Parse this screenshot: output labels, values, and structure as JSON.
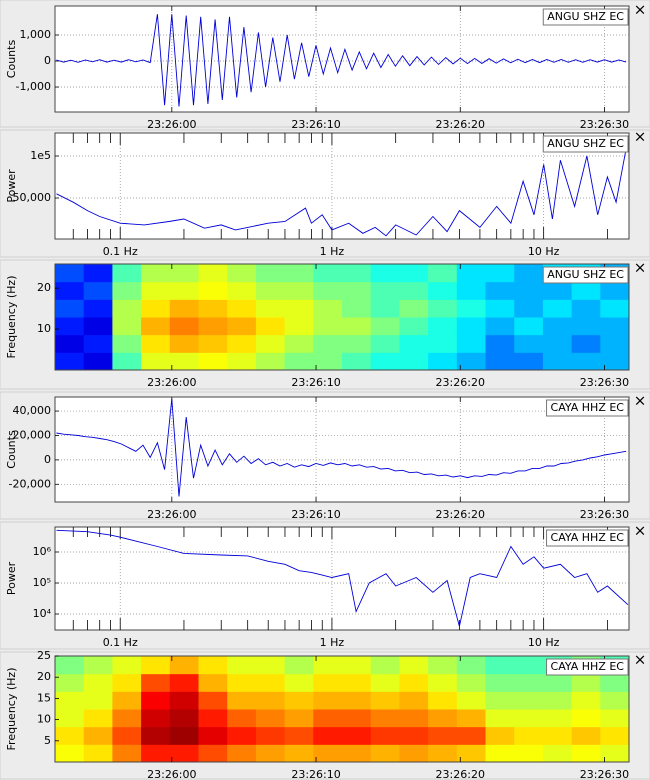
{
  "close_button": "×",
  "chart_data": [
    {
      "type": "line",
      "ylabel": "Counts",
      "x": [
        -8,
        -7.5,
        -7,
        -6.5,
        -6,
        -5.5,
        -5,
        -4.5,
        -4,
        -3.5,
        -3,
        -2.5,
        -2,
        -1.5,
        -1,
        -0.5,
        0,
        0.5,
        1,
        1.5,
        2,
        2.5,
        3,
        3.5,
        4,
        4.5,
        5,
        5.5,
        6,
        6.5,
        7,
        7.5,
        8,
        8.5,
        9,
        9.5,
        10,
        10.5,
        11,
        11.5,
        12,
        12.5,
        13,
        13.5,
        14,
        14.5,
        15,
        15.5,
        16,
        16.5,
        17,
        17.5,
        18,
        18.5,
        19,
        19.5,
        20,
        20.5,
        21,
        21.5,
        22,
        22.5,
        23,
        23.5,
        24,
        24.5,
        25,
        25.5,
        26,
        26.5,
        27,
        27.5,
        28,
        28.5,
        29,
        29.5,
        30,
        30.5,
        31,
        31.5
      ],
      "series": [
        {
          "name": "ANGU SHZ EC",
          "color": "#0000d8",
          "values": [
            40,
            -40,
            30,
            -50,
            40,
            -30,
            50,
            -40,
            30,
            -40,
            50,
            -30,
            40,
            -60,
            1800,
            -1700,
            1800,
            -1750,
            1750,
            -1700,
            1700,
            -1650,
            1600,
            -1500,
            1700,
            -1400,
            1300,
            -1200,
            1100,
            -1000,
            900,
            -800,
            1000,
            -700,
            700,
            -600,
            600,
            -500,
            500,
            -450,
            450,
            -350,
            350,
            -300,
            300,
            -250,
            250,
            -200,
            200,
            -180,
            170,
            -150,
            150,
            -130,
            130,
            -110,
            110,
            -100,
            100,
            -90,
            90,
            -80,
            80,
            -70,
            70,
            -60,
            60,
            -60,
            60,
            -50,
            60,
            -50,
            50,
            -50,
            50,
            -40,
            50,
            -40,
            40,
            -40
          ]
        }
      ],
      "xlim": [
        -8.1,
        31.7
      ],
      "ylim": [
        -1960,
        2115
      ],
      "xticks": [
        {
          "value": 0,
          "label": "23:26:00"
        },
        {
          "value": 10,
          "label": "23:26:10"
        },
        {
          "value": 20,
          "label": "23:26:20"
        },
        {
          "value": 30,
          "label": "23:26:30"
        }
      ],
      "yticks": [
        {
          "value": 1000,
          "label": "1,000"
        },
        0,
        {
          "value": -1000,
          "label": "-1,000"
        }
      ],
      "grid": true
    },
    {
      "type": "line",
      "ylabel": "Power",
      "xscale": "log",
      "x": [
        0.05,
        0.06,
        0.07,
        0.08,
        0.1,
        0.13,
        0.17,
        0.2,
        0.25,
        0.3,
        0.35,
        0.4,
        0.5,
        0.6,
        0.75,
        0.8,
        0.9,
        1,
        1.2,
        1.4,
        1.6,
        1.8,
        2,
        2.5,
        3,
        3.5,
        4,
        5,
        6,
        7,
        8,
        9,
        10,
        11,
        12,
        14,
        16,
        18,
        20,
        22,
        25
      ],
      "series": [
        {
          "name": "ANGU SHZ EC",
          "color": "#0000d8",
          "values": [
            55000,
            45000,
            35000,
            28000,
            20000,
            18000,
            22000,
            25000,
            14000,
            18000,
            12000,
            15000,
            20000,
            22000,
            38000,
            20000,
            30000,
            12000,
            20000,
            8000,
            15000,
            5000,
            18000,
            6000,
            28000,
            10000,
            35000,
            15000,
            40000,
            20000,
            70000,
            30000,
            90000,
            25000,
            95000,
            40000,
            100000,
            30000,
            75000,
            45000,
            120000
          ]
        }
      ],
      "xlim": [
        0.0492,
        25.3
      ],
      "ylim": [
        1190,
        127400
      ],
      "xticks": [
        {
          "value": 0.1,
          "label": "0.1 Hz"
        },
        {
          "value": 1,
          "label": "1 Hz"
        },
        {
          "value": 10,
          "label": "10 Hz"
        }
      ],
      "xminor": [
        0.06,
        0.07,
        0.08,
        0.09,
        0.2,
        0.3,
        0.4,
        0.5,
        0.6,
        0.7,
        0.8,
        0.9,
        2,
        3,
        4,
        5,
        6,
        7,
        8,
        9,
        20
      ],
      "yticks": [
        {
          "value": 100000,
          "label": "1e5"
        },
        {
          "value": 50000,
          "label": "50,000"
        }
      ],
      "grid": true
    },
    {
      "type": "heatmap",
      "ylabel": "Frequency (Hz)",
      "label": "ANGU SHZ EC",
      "xlim": [
        -8.1,
        31.7
      ],
      "ylim": [
        0,
        25.9
      ],
      "xticks": [
        {
          "value": 0,
          "label": "23:26:00"
        },
        {
          "value": 10,
          "label": "23:26:10"
        },
        {
          "value": 20,
          "label": "23:26:20"
        },
        {
          "value": 30,
          "label": "23:26:30"
        }
      ],
      "yticks": [
        20,
        10
      ],
      "z": [
        [
          0.15,
          0.1,
          0.45,
          0.6,
          0.6,
          0.62,
          0.6,
          0.55,
          0.5,
          0.5,
          0.45,
          0.4,
          0.4,
          0.35,
          0.3,
          0.25,
          0.25,
          0.3,
          0.3,
          0.3
        ],
        [
          0.1,
          0.15,
          0.5,
          0.65,
          0.7,
          0.68,
          0.65,
          0.6,
          0.55,
          0.5,
          0.5,
          0.45,
          0.4,
          0.4,
          0.35,
          0.25,
          0.3,
          0.3,
          0.25,
          0.3
        ],
        [
          0.15,
          0.1,
          0.55,
          0.7,
          0.75,
          0.72,
          0.7,
          0.65,
          0.6,
          0.55,
          0.55,
          0.5,
          0.45,
          0.4,
          0.35,
          0.3,
          0.35,
          0.3,
          0.3,
          0.3
        ],
        [
          0.2,
          0.15,
          0.55,
          0.65,
          0.7,
          0.68,
          0.65,
          0.6,
          0.6,
          0.55,
          0.5,
          0.45,
          0.5,
          0.45,
          0.4,
          0.35,
          0.3,
          0.35,
          0.3,
          0.35
        ],
        [
          0.15,
          0.2,
          0.5,
          0.6,
          0.6,
          0.62,
          0.6,
          0.55,
          0.55,
          0.5,
          0.5,
          0.45,
          0.45,
          0.4,
          0.35,
          0.3,
          0.3,
          0.3,
          0.35,
          0.3
        ],
        [
          0.2,
          0.15,
          0.45,
          0.55,
          0.55,
          0.6,
          0.55,
          0.5,
          0.5,
          0.45,
          0.45,
          0.4,
          0.4,
          0.45,
          0.35,
          0.35,
          0.3,
          0.35,
          0.35,
          0.3
        ]
      ]
    },
    {
      "type": "line",
      "ylabel": "Counts",
      "x": [
        -8,
        -7.5,
        -7,
        -6.5,
        -6,
        -5.5,
        -5,
        -4.5,
        -4,
        -3.5,
        -3,
        -2.5,
        -2,
        -1.5,
        -1,
        -0.5,
        0,
        0.5,
        1,
        1.5,
        2,
        2.5,
        3,
        3.5,
        4,
        4.5,
        5,
        5.5,
        6,
        6.5,
        7,
        7.5,
        8,
        8.5,
        9,
        9.5,
        10,
        10.5,
        11,
        11.5,
        12,
        12.5,
        13,
        13.5,
        14,
        14.5,
        15,
        15.5,
        16,
        16.5,
        17,
        17.5,
        18,
        18.5,
        19,
        19.5,
        20,
        20.5,
        21,
        21.5,
        22,
        22.5,
        23,
        23.5,
        24,
        24.5,
        25,
        25.5,
        26,
        26.5,
        27,
        27.5,
        28,
        28.5,
        29,
        29.5,
        30,
        30.5,
        31,
        31.5
      ],
      "series": [
        {
          "name": "CAYA HHZ EC",
          "color": "#0000d8",
          "values": [
            22000,
            21000,
            20500,
            20000,
            19000,
            18500,
            17500,
            16500,
            15000,
            13000,
            10000,
            7000,
            12000,
            2000,
            14000,
            -8000,
            50000,
            -30000,
            35000,
            -15000,
            12000,
            -5000,
            8000,
            -4000,
            5000,
            -2000,
            3000,
            -3000,
            1000,
            -4000,
            -2000,
            -5000,
            -3000,
            -6000,
            -4000,
            -5500,
            -3000,
            -4500,
            -2500,
            -4000,
            -3000,
            -5000,
            -4000,
            -6000,
            -5500,
            -7500,
            -7000,
            -9000,
            -8500,
            -10500,
            -10000,
            -12000,
            -11500,
            -13000,
            -12500,
            -14000,
            -13000,
            -14500,
            -13000,
            -13500,
            -12000,
            -12500,
            -10500,
            -11000,
            -9000,
            -9000,
            -7000,
            -7000,
            -5000,
            -5000,
            -3000,
            -2500,
            -1000,
            0,
            1500,
            2500,
            4000,
            5000,
            6000,
            7000
          ]
        }
      ],
      "xlim": [
        -8.1,
        31.7
      ],
      "ylim": [
        -34500,
        51500
      ],
      "xticks": [
        {
          "value": 0,
          "label": "23:26:00"
        },
        {
          "value": 10,
          "label": "23:26:10"
        },
        {
          "value": 20,
          "label": "23:26:20"
        },
        {
          "value": 30,
          "label": "23:26:30"
        }
      ],
      "yticks": [
        {
          "value": 40000,
          "label": "40,000"
        },
        {
          "value": 20000,
          "label": "20,000"
        },
        0,
        {
          "value": -20000,
          "label": "-20,000"
        }
      ],
      "grid": true
    },
    {
      "type": "line",
      "ylabel": "Power",
      "xscale": "log",
      "yscale": "log",
      "x": [
        0.05,
        0.07,
        0.09,
        0.1,
        0.15,
        0.2,
        0.3,
        0.4,
        0.5,
        0.6,
        0.7,
        0.8,
        0.9,
        1,
        1.2,
        1.3,
        1.5,
        1.8,
        2,
        2.5,
        3,
        3.5,
        4,
        4.5,
        5,
        6,
        7,
        8,
        9,
        10,
        12,
        14,
        16,
        18,
        20,
        25
      ],
      "series": [
        {
          "name": "CAYA HHZ EC",
          "color": "#0000d8",
          "values": [
            5000000,
            4500000,
            3500000,
            3000000,
            1500000,
            900000,
            800000,
            750000,
            500000,
            400000,
            250000,
            220000,
            180000,
            150000,
            200000,
            12000,
            100000,
            200000,
            80000,
            150000,
            50000,
            120000,
            4000,
            150000,
            200000,
            150000,
            1500000,
            400000,
            700000,
            300000,
            400000,
            150000,
            200000,
            50000,
            80000,
            20000
          ]
        }
      ],
      "xlim": [
        0.0492,
        25.3
      ],
      "ylim": [
        3050,
        6400000
      ],
      "xticks": [
        {
          "value": 0.1,
          "label": "0.1 Hz"
        },
        {
          "value": 1,
          "label": "1 Hz"
        },
        {
          "value": 10,
          "label": "10 Hz"
        }
      ],
      "xminor": [
        0.06,
        0.07,
        0.08,
        0.09,
        0.2,
        0.3,
        0.4,
        0.5,
        0.6,
        0.7,
        0.8,
        0.9,
        2,
        3,
        4,
        5,
        6,
        7,
        8,
        9,
        20
      ],
      "yticks": [
        {
          "value": 1000000,
          "label": "10⁶"
        },
        {
          "value": 100000,
          "label": "10⁵"
        },
        {
          "value": 10000,
          "label": "10⁴"
        }
      ],
      "grid": true
    },
    {
      "type": "heatmap",
      "ylabel": "Frequency (Hz)",
      "label": "CAYA HHZ EC",
      "xlim": [
        -8.1,
        31.7
      ],
      "ylim": [
        0,
        25
      ],
      "xticks": [
        {
          "value": 0,
          "label": "23:26:00"
        },
        {
          "value": 10,
          "label": "23:26:10"
        },
        {
          "value": 20,
          "label": "23:26:20"
        },
        {
          "value": 30,
          "label": "23:26:30"
        }
      ],
      "yticks": [
        25,
        20,
        15,
        10,
        5
      ],
      "z": [
        [
          0.62,
          0.65,
          0.75,
          0.85,
          0.85,
          0.8,
          0.75,
          0.72,
          0.7,
          0.72,
          0.72,
          0.7,
          0.72,
          0.7,
          0.68,
          0.62,
          0.62,
          0.6,
          0.62,
          0.6
        ],
        [
          0.65,
          0.7,
          0.8,
          0.95,
          0.97,
          0.9,
          0.85,
          0.82,
          0.8,
          0.85,
          0.85,
          0.82,
          0.82,
          0.8,
          0.8,
          0.68,
          0.65,
          0.65,
          0.68,
          0.65
        ],
        [
          0.6,
          0.65,
          0.75,
          0.92,
          0.95,
          0.85,
          0.78,
          0.75,
          0.72,
          0.78,
          0.78,
          0.75,
          0.75,
          0.72,
          0.7,
          0.6,
          0.6,
          0.6,
          0.62,
          0.6
        ],
        [
          0.6,
          0.6,
          0.7,
          0.88,
          0.92,
          0.8,
          0.7,
          0.7,
          0.68,
          0.7,
          0.7,
          0.68,
          0.7,
          0.65,
          0.6,
          0.55,
          0.55,
          0.55,
          0.6,
          0.55
        ],
        [
          0.55,
          0.6,
          0.65,
          0.8,
          0.85,
          0.7,
          0.65,
          0.65,
          0.6,
          0.65,
          0.65,
          0.6,
          0.65,
          0.6,
          0.55,
          0.5,
          0.5,
          0.5,
          0.55,
          0.5
        ],
        [
          0.5,
          0.55,
          0.6,
          0.65,
          0.7,
          0.65,
          0.6,
          0.6,
          0.55,
          0.6,
          0.6,
          0.55,
          0.6,
          0.55,
          0.5,
          0.45,
          0.45,
          0.45,
          0.5,
          0.45
        ]
      ]
    }
  ]
}
